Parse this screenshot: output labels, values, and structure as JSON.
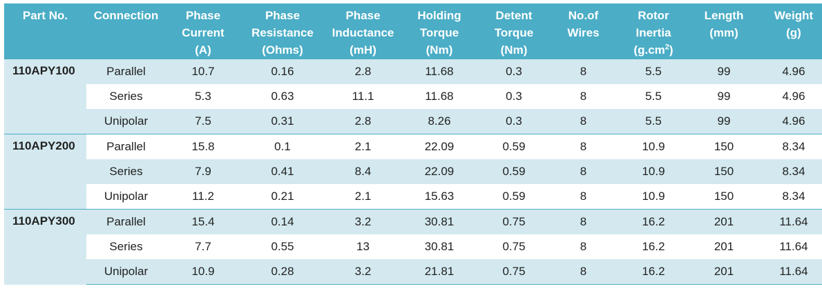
{
  "headers": {
    "part_no": "Part No.",
    "connection": "Connection",
    "phase_current": [
      "Phase",
      "Current",
      "(A)"
    ],
    "phase_resistance": [
      "Phase",
      "Resistance",
      "(Ohms)"
    ],
    "phase_inductance": [
      "Phase",
      "Inductance",
      "(mH)"
    ],
    "holding_torque": [
      "Holding",
      "Torque",
      "(Nm)"
    ],
    "detent_torque": [
      "Detent",
      "Torque",
      "(Nm)"
    ],
    "no_of_wires": [
      "No.of",
      "Wires"
    ],
    "rotor_inertia": [
      "Rotor",
      "Inertia",
      "(g.cm",
      "2",
      ")"
    ],
    "length": [
      "Length",
      "(mm)"
    ],
    "weight": [
      "Weight",
      "(g)"
    ]
  },
  "groups": [
    {
      "part": "110APY100",
      "rows": [
        {
          "connection": "Parallel",
          "current": "10.7",
          "resistance": "0.16",
          "inductance": "2.8",
          "holding": "11.68",
          "detent": "0.3",
          "wires": "8",
          "inertia": "5.5",
          "length": "99",
          "weight": "4.96"
        },
        {
          "connection": "Series",
          "current": "5.3",
          "resistance": "0.63",
          "inductance": "11.1",
          "holding": "11.68",
          "detent": "0.3",
          "wires": "8",
          "inertia": "5.5",
          "length": "99",
          "weight": "4.96"
        },
        {
          "connection": "Unipolar",
          "current": "7.5",
          "resistance": "0.31",
          "inductance": "2.8",
          "holding": "8.26",
          "detent": "0.3",
          "wires": "8",
          "inertia": "5.5",
          "length": "99",
          "weight": "4.96"
        }
      ]
    },
    {
      "part": "110APY200",
      "rows": [
        {
          "connection": "Parallel",
          "current": "15.8",
          "resistance": "0.1",
          "inductance": "2.1",
          "holding": "22.09",
          "detent": "0.59",
          "wires": "8",
          "inertia": "10.9",
          "length": "150",
          "weight": "8.34"
        },
        {
          "connection": "Series",
          "current": "7.9",
          "resistance": "0.41",
          "inductance": "8.4",
          "holding": "22.09",
          "detent": "0.59",
          "wires": "8",
          "inertia": "10.9",
          "length": "150",
          "weight": "8.34"
        },
        {
          "connection": "Unipolar",
          "current": "11.2",
          "resistance": "0.21",
          "inductance": "2.1",
          "holding": "15.63",
          "detent": "0.59",
          "wires": "8",
          "inertia": "10.9",
          "length": "150",
          "weight": "8.34"
        }
      ]
    },
    {
      "part": "110APY300",
      "rows": [
        {
          "connection": "Parallel",
          "current": "15.4",
          "resistance": "0.14",
          "inductance": "3.2",
          "holding": "30.81",
          "detent": "0.75",
          "wires": "8",
          "inertia": "16.2",
          "length": "201",
          "weight": "11.64"
        },
        {
          "connection": "Series",
          "current": "7.7",
          "resistance": "0.55",
          "inductance": "13",
          "holding": "30.81",
          "detent": "0.75",
          "wires": "8",
          "inertia": "16.2",
          "length": "201",
          "weight": "11.64"
        },
        {
          "connection": "Unipolar",
          "current": "10.9",
          "resistance": "0.28",
          "inductance": "3.2",
          "holding": "21.81",
          "detent": "0.75",
          "wires": "8",
          "inertia": "16.2",
          "length": "201",
          "weight": "11.64"
        }
      ]
    }
  ],
  "colors": {
    "header_bg": "#4badc6",
    "header_text": "#ffffff",
    "row_shade": "#d3e9ef",
    "row_plain": "#ffffff"
  }
}
